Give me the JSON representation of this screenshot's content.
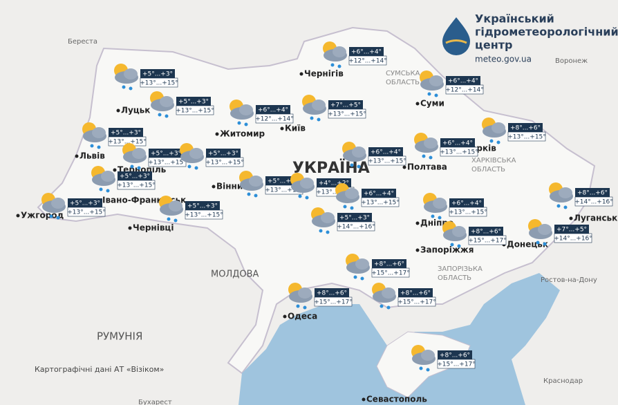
{
  "header": {
    "title_lines": [
      "Український",
      "гідрометеорологічний",
      "центр"
    ],
    "url": "meteo.gov.ua"
  },
  "countries": [
    "УКРАЇНА",
    "МОЛДОВА",
    "РУМУНІЯ"
  ],
  "regions": [
    [
      "СУМСЬКА",
      "ОБЛАСТЬ"
    ],
    [
      "ХАРКІВСЬКА",
      "ОБЛАСТЬ"
    ],
    [
      "ЗАПОРІЗЬКА",
      "ОБЛАСТЬ"
    ]
  ],
  "cities": [
    "Луцьк",
    "Житомир",
    "Київ",
    "Чернігів",
    "Суми",
    "Харків",
    "Полтава",
    "Львів",
    "Тернопіль",
    "Івано-Франківськ",
    "Ужгород",
    "Чернівці",
    "Вінниця",
    "Дніпро",
    "Запоріжжя",
    "Донецьк",
    "Луганськ",
    "Одеса",
    "Севастополь",
    "Береста",
    "Воронеж",
    "Ростов-на-Дону",
    "Краснодар",
    "Бухарест"
  ],
  "forecasts": [
    {
      "night": "+5°...+3°",
      "day": "+13°...+15°"
    },
    {
      "night": "+5°...+3°",
      "day": "+13°...+15°"
    },
    {
      "night": "+6°...+4°",
      "day": "+12°...+14°"
    },
    {
      "night": "+7°...+5°",
      "day": "+13°...+15°"
    },
    {
      "night": "+6°...+4°",
      "day": "+12°...+14°"
    },
    {
      "night": "+6°...+4°",
      "day": "+12°...+14°"
    },
    {
      "night": "+8°...+6°",
      "day": "+13°...+15°"
    },
    {
      "night": "+6°...+4°",
      "day": "+13°...+15°"
    },
    {
      "night": "+6°...+4°",
      "day": "+13°...+15°"
    },
    {
      "night": "+5°...+3°",
      "day": "+13°...+15°"
    },
    {
      "night": "+5°...+3°",
      "day": "+13°...+15°"
    },
    {
      "night": "+5°...+3°",
      "day": "+13°...+15°"
    },
    {
      "night": "+5°...+3°",
      "day": "+13°...+15°"
    },
    {
      "night": "+5°...+3°",
      "day": "+13°...+15°"
    },
    {
      "night": "+5°...+3°",
      "day": "+13°...+15°"
    },
    {
      "night": "+5°...+3°",
      "day": "+13°...+15°"
    },
    {
      "night": "+4°...+2°",
      "day": "+13°...+15°"
    },
    {
      "night": "+6°...+4°",
      "day": "+13°...+15°"
    },
    {
      "night": "+5°...+3°",
      "day": "+14°...+16°"
    },
    {
      "night": "+6°...+4°",
      "day": "+13°...+15°"
    },
    {
      "night": "+8°...+6°",
      "day": "+14°...+16°"
    },
    {
      "night": "+8°...+6°",
      "day": "+15°...+17°"
    },
    {
      "night": "+7°...+5°",
      "day": "+14°...+16°"
    },
    {
      "night": "+8°...+6°",
      "day": "+15°...+17°"
    },
    {
      "night": "+8°...+6°",
      "day": "+15°...+17°"
    },
    {
      "night": "+8°...+6°",
      "day": "+15°...+17°"
    },
    {
      "night": "+8°...+6°",
      "day": "+15°...+17°"
    }
  ],
  "attribution": "Картографічні дані АТ «Візіком»"
}
